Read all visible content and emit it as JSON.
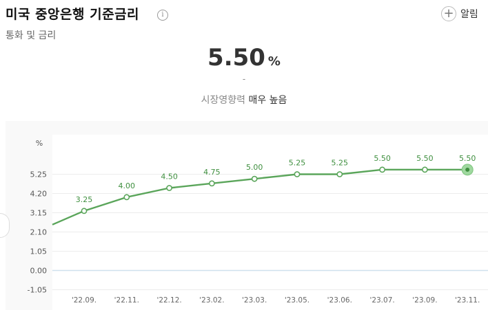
{
  "header": {
    "title": "미국 중앙은행 기준금리",
    "info_icon": "i",
    "subtitle": "통화 및 금리",
    "alarm_label": "알림",
    "alarm_icon": "+"
  },
  "rate": {
    "value": "5.50",
    "unit": "%",
    "change": "-",
    "impact_label": "시장영향력",
    "impact_value": "매우 높음"
  },
  "colors": {
    "line": "#5aa55a",
    "label": "#3f8f3f",
    "grid": "#ececec",
    "zero": "#cfe0ee"
  },
  "chart_data": {
    "type": "line",
    "ylabel": "%",
    "y_ticks": [
      "5.25",
      "4.20",
      "3.15",
      "2.10",
      "1.05",
      "0.00",
      "-1.05"
    ],
    "ylim": [
      -1.05,
      6.3
    ],
    "categories": [
      "'22.09.",
      "'22.11.",
      "'22.12.",
      "'23.02.",
      "'23.03.",
      "'23.05.",
      "'23.06.",
      "'23.07.",
      "'23.09.",
      "'23.11."
    ],
    "values": [
      3.25,
      4.0,
      4.5,
      4.75,
      5.0,
      5.25,
      5.25,
      5.5,
      5.5,
      5.5
    ],
    "value_labels": [
      "3.25",
      "4.00",
      "4.50",
      "4.75",
      "5.00",
      "5.25",
      "5.25",
      "5.50",
      "5.50",
      "5.50"
    ],
    "prior_value": 2.5,
    "highlight_last": true,
    "grid": true
  }
}
